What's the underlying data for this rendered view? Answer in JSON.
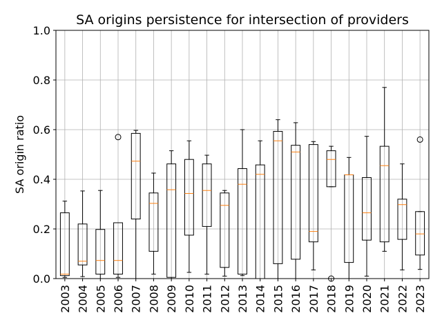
{
  "chart_data": {
    "type": "boxplot",
    "title": "SA origins persistence for intersection of providers",
    "xlabel": "",
    "ylabel": "SA origin ratio",
    "ylim": [
      0.0,
      1.0
    ],
    "yticks": [
      "0.0",
      "0.2",
      "0.4",
      "0.6",
      "0.8",
      "1.0"
    ],
    "grid": true,
    "colors": {
      "box": "#000000",
      "median": "#ff7f0e",
      "grid": "#b0b0b0"
    },
    "categories": [
      "2003",
      "2004",
      "2005",
      "2006",
      "2007",
      "2008",
      "2009",
      "2010",
      "2011",
      "2012",
      "2013",
      "2014",
      "2015",
      "2016",
      "2017",
      "2018",
      "2019",
      "2020",
      "2021",
      "2022",
      "2023"
    ],
    "boxes": [
      {
        "whislo": 0.005,
        "q1": 0.012,
        "med": 0.018,
        "q3": 0.265,
        "whishi": 0.312,
        "fliers": []
      },
      {
        "whislo": 0.008,
        "q1": 0.055,
        "med": 0.07,
        "q3": 0.22,
        "whishi": 0.353,
        "fliers": []
      },
      {
        "whislo": 0.0,
        "q1": 0.018,
        "med": 0.073,
        "q3": 0.198,
        "whishi": 0.355,
        "fliers": []
      },
      {
        "whislo": 0.005,
        "q1": 0.018,
        "med": 0.073,
        "q3": 0.225,
        "whishi": 0.225,
        "fliers": [
          0.57
        ]
      },
      {
        "whislo": 0.0,
        "q1": 0.24,
        "med": 0.473,
        "q3": 0.585,
        "whishi": 0.597,
        "fliers": []
      },
      {
        "whislo": 0.018,
        "q1": 0.11,
        "med": 0.303,
        "q3": 0.345,
        "whishi": 0.425,
        "fliers": []
      },
      {
        "whislo": 0.0,
        "q1": 0.005,
        "med": 0.358,
        "q3": 0.462,
        "whishi": 0.515,
        "fliers": []
      },
      {
        "whislo": 0.025,
        "q1": 0.175,
        "med": 0.343,
        "q3": 0.48,
        "whishi": 0.555,
        "fliers": []
      },
      {
        "whislo": 0.018,
        "q1": 0.21,
        "med": 0.355,
        "q3": 0.462,
        "whishi": 0.497,
        "fliers": []
      },
      {
        "whislo": 0.01,
        "q1": 0.045,
        "med": 0.295,
        "q3": 0.345,
        "whishi": 0.355,
        "fliers": []
      },
      {
        "whislo": 0.012,
        "q1": 0.018,
        "med": 0.38,
        "q3": 0.443,
        "whishi": 0.6,
        "fliers": []
      },
      {
        "whislo": 0.0,
        "q1": 0.0,
        "med": 0.42,
        "q3": 0.458,
        "whishi": 0.555,
        "fliers": []
      },
      {
        "whislo": 0.0,
        "q1": 0.06,
        "med": 0.555,
        "q3": 0.593,
        "whishi": 0.64,
        "fliers": []
      },
      {
        "whislo": 0.0,
        "q1": 0.078,
        "med": 0.51,
        "q3": 0.537,
        "whishi": 0.628,
        "fliers": []
      },
      {
        "whislo": 0.035,
        "q1": 0.148,
        "med": 0.19,
        "q3": 0.54,
        "whishi": 0.552,
        "fliers": []
      },
      {
        "whislo": 0.37,
        "q1": 0.37,
        "med": 0.48,
        "q3": 0.515,
        "whishi": 0.533,
        "fliers": [
          0.0
        ]
      },
      {
        "whislo": 0.0,
        "q1": 0.065,
        "med": 0.418,
        "q3": 0.418,
        "whishi": 0.488,
        "fliers": []
      },
      {
        "whislo": 0.01,
        "q1": 0.155,
        "med": 0.265,
        "q3": 0.407,
        "whishi": 0.573,
        "fliers": []
      },
      {
        "whislo": 0.11,
        "q1": 0.148,
        "med": 0.455,
        "q3": 0.533,
        "whishi": 0.77,
        "fliers": []
      },
      {
        "whislo": 0.035,
        "q1": 0.158,
        "med": 0.298,
        "q3": 0.32,
        "whishi": 0.462,
        "fliers": []
      },
      {
        "whislo": 0.037,
        "q1": 0.095,
        "med": 0.18,
        "q3": 0.27,
        "whishi": 0.27,
        "fliers": [
          0.56
        ]
      }
    ]
  }
}
